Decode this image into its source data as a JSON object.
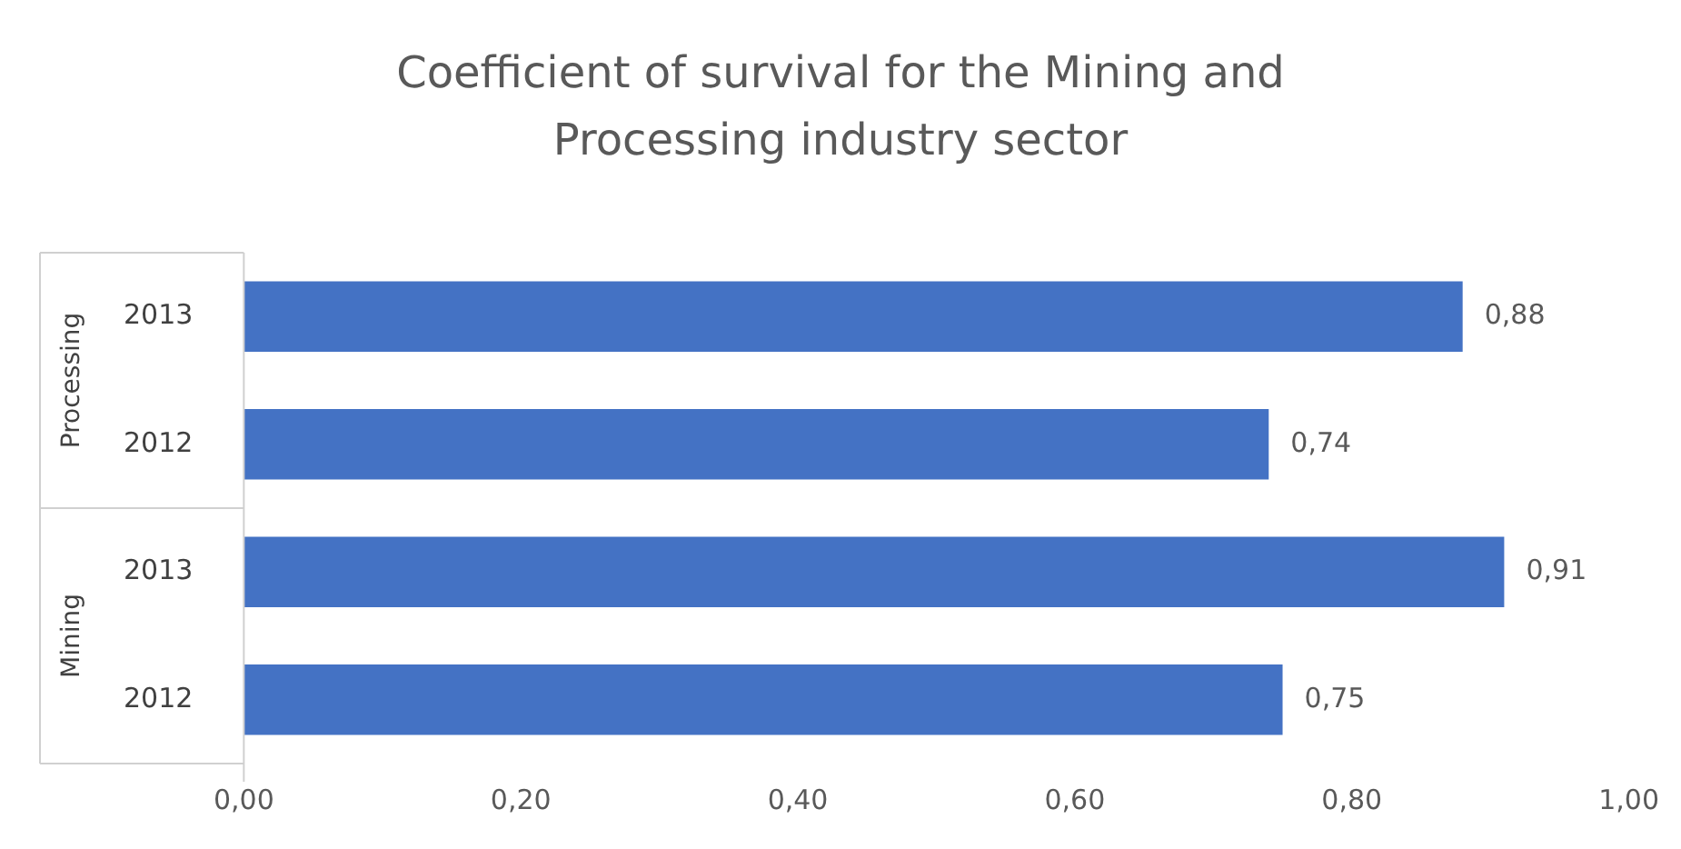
{
  "chart_data": {
    "type": "bar",
    "orientation": "horizontal",
    "title": "Coefficient of survival for the Mining and Processing industry sector",
    "categories": [
      "2013",
      "2012",
      "2013",
      "2012"
    ],
    "values": [
      0.88,
      0.74,
      0.91,
      0.75
    ],
    "value_labels": [
      "0,88",
      "0,74",
      "0,91",
      "0,75"
    ],
    "color": "#4472c4",
    "xlim": [
      0,
      1
    ],
    "xticks": [
      {
        "value": 0,
        "label": "0,00"
      },
      {
        "value": 0.2,
        "label": "0,20"
      },
      {
        "value": 0.4,
        "label": "0,40"
      },
      {
        "value": 0.6,
        "label": "0,60"
      },
      {
        "value": 0.8,
        "label": "0,80"
      },
      {
        "value": 1,
        "label": "1,00"
      }
    ],
    "annotations": [
      "Processing",
      "Mining"
    ],
    "grid": false,
    "legend": false
  }
}
